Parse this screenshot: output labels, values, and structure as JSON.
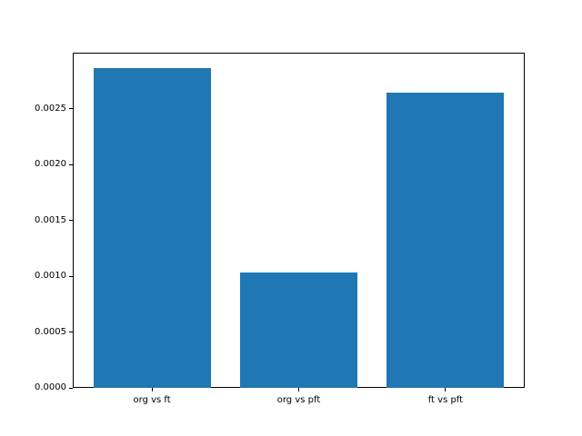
{
  "chart_data": {
    "type": "bar",
    "title": "",
    "xlabel": "",
    "ylabel": "",
    "categories": [
      "org vs ft",
      "org vs pft",
      "ft vs pft"
    ],
    "values": [
      0.00286,
      0.00103,
      0.00264
    ],
    "bar_color": "#1f77b4",
    "bar_width_fraction": 0.8,
    "xlim": [
      -0.54,
      2.54
    ],
    "ylim": [
      0,
      0.003
    ],
    "yticks": [
      0.0,
      0.0005,
      0.001,
      0.0015,
      0.002,
      0.0025
    ],
    "ytick_labels": [
      "0.0000",
      "0.0005",
      "0.0010",
      "0.0015",
      "0.0020",
      "0.0025"
    ],
    "grid": false,
    "legend": null,
    "axes_color": "#000000",
    "background_color": "#ffffff"
  }
}
